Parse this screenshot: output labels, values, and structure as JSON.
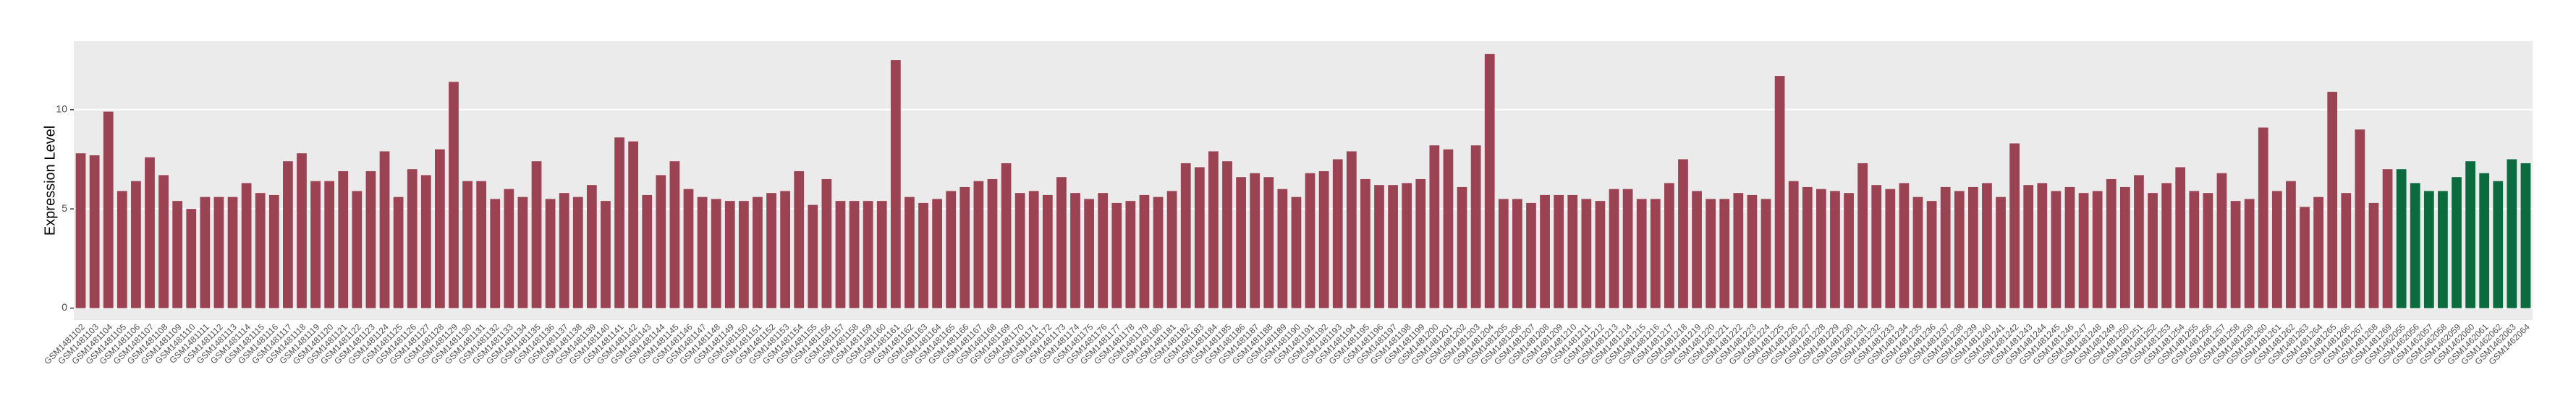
{
  "chart_data": {
    "type": "bar",
    "y_label": "Expression Level",
    "categories": [
      "GSM1481102",
      "GSM1481103",
      "GSM1481104",
      "GSM1481105",
      "GSM1481106",
      "GSM1481107",
      "GSM1481108",
      "GSM1481109",
      "GSM1481110",
      "GSM1481111",
      "GSM1481112",
      "GSM1481113",
      "GSM1481114",
      "GSM1481115",
      "GSM1481116",
      "GSM1481117",
      "GSM1481118",
      "GSM1481119",
      "GSM1481120",
      "GSM1481121",
      "GSM1481122",
      "GSM1481123",
      "GSM1481124",
      "GSM1481125",
      "GSM1481126",
      "GSM1481127",
      "GSM1481128",
      "GSM1481129",
      "GSM1481130",
      "GSM1481131",
      "GSM1481132",
      "GSM1481133",
      "GSM1481134",
      "GSM1481135",
      "GSM1481136",
      "GSM1481137",
      "GSM1481138",
      "GSM1481139",
      "GSM1481140",
      "GSM1481141",
      "GSM1481142",
      "GSM1481143",
      "GSM1481144",
      "GSM1481145",
      "GSM1481146",
      "GSM1481147",
      "GSM1481148",
      "GSM1481149",
      "GSM1481150",
      "GSM1481151",
      "GSM1481152",
      "GSM1481153",
      "GSM1481154",
      "GSM1481155",
      "GSM1481156",
      "GSM1481157",
      "GSM1481158",
      "GSM1481159",
      "GSM1481160",
      "GSM1481161",
      "GSM1481162",
      "GSM1481163",
      "GSM1481164",
      "GSM1481165",
      "GSM1481166",
      "GSM1481167",
      "GSM1481168",
      "GSM1481169",
      "GSM1481170",
      "GSM1481171",
      "GSM1481172",
      "GSM1481173",
      "GSM1481174",
      "GSM1481175",
      "GSM1481176",
      "GSM1481177",
      "GSM1481178",
      "GSM1481179",
      "GSM1481180",
      "GSM1481181",
      "GSM1481182",
      "GSM1481183",
      "GSM1481184",
      "GSM1481185",
      "GSM1481186",
      "GSM1481187",
      "GSM1481188",
      "GSM1481189",
      "GSM1481190",
      "GSM1481191",
      "GSM1481192",
      "GSM1481193",
      "GSM1481194",
      "GSM1481195",
      "GSM1481196",
      "GSM1481197",
      "GSM1481198",
      "GSM1481199",
      "GSM1481200",
      "GSM1481201",
      "GSM1481202",
      "GSM1481203",
      "GSM1481204",
      "GSM1481205",
      "GSM1481206",
      "GSM1481207",
      "GSM1481208",
      "GSM1481209",
      "GSM1481210",
      "GSM1481211",
      "GSM1481212",
      "GSM1481213",
      "GSM1481214",
      "GSM1481215",
      "GSM1481216",
      "GSM1481217",
      "GSM1481218",
      "GSM1481219",
      "GSM1481220",
      "GSM1481221",
      "GSM1481222",
      "GSM1481223",
      "GSM1481224",
      "GSM1481225",
      "GSM1481226",
      "GSM1481227",
      "GSM1481228",
      "GSM1481229",
      "GSM1481230",
      "GSM1481231",
      "GSM1481232",
      "GSM1481233",
      "GSM1481234",
      "GSM1481235",
      "GSM1481236",
      "GSM1481237",
      "GSM1481238",
      "GSM1481239",
      "GSM1481240",
      "GSM1481241",
      "GSM1481242",
      "GSM1481243",
      "GSM1481244",
      "GSM1481245",
      "GSM1481246",
      "GSM1481247",
      "GSM1481248",
      "GSM1481249",
      "GSM1481250",
      "GSM1481251",
      "GSM1481252",
      "GSM1481253",
      "GSM1481254",
      "GSM1481255",
      "GSM1481256",
      "GSM1481257",
      "GSM1481258",
      "GSM1481259",
      "GSM1481260",
      "GSM1481261",
      "GSM1481262",
      "GSM1481263",
      "GSM1481264",
      "GSM1481265",
      "GSM1481266",
      "GSM1481267",
      "GSM1481268",
      "GSM1481269",
      "GSM1462055",
      "GSM1462056",
      "GSM1462057",
      "GSM1462058",
      "GSM1462059",
      "GSM1462060",
      "GSM1462061",
      "GSM1462062",
      "GSM1462063",
      "GSM1462064"
    ],
    "series": [
      {
        "color": "#9b4253",
        "values": [
          7.8,
          7.7,
          9.9,
          5.9,
          6.4,
          7.6,
          6.7,
          5.4,
          5.0,
          5.6,
          5.6,
          5.6,
          6.3,
          5.8,
          5.7,
          7.4,
          7.8,
          6.4,
          6.4,
          6.9,
          5.9,
          6.9,
          7.9,
          5.6,
          7.0,
          6.7,
          8.0,
          11.4,
          6.4,
          6.4,
          5.5,
          6.0,
          5.6,
          7.4,
          5.5,
          5.8,
          5.6,
          6.2,
          5.4,
          8.6,
          8.4,
          5.7,
          6.7,
          7.4,
          6.0,
          5.6,
          5.5,
          5.4,
          5.4,
          5.6,
          5.8,
          5.9,
          6.9,
          5.2,
          6.5,
          5.4,
          5.4,
          5.4,
          5.4,
          12.5,
          5.6,
          5.3,
          5.5,
          5.9,
          6.1,
          6.4,
          6.5,
          7.3,
          5.8,
          5.9,
          5.7,
          6.6,
          5.8,
          5.5,
          5.8,
          5.3,
          5.4,
          5.7,
          5.6,
          5.9,
          7.3,
          7.1,
          7.9,
          7.4,
          6.6,
          6.8,
          6.6,
          6.0,
          5.6,
          6.8,
          6.9,
          7.5,
          7.9,
          6.5,
          6.2,
          6.2,
          6.3,
          6.5,
          8.2,
          8.0,
          6.1,
          8.2,
          12.8,
          5.5,
          5.5,
          5.3,
          5.7,
          5.7,
          5.7,
          5.5,
          5.4,
          6.0,
          6.0,
          5.5,
          5.5,
          6.3,
          7.5,
          5.9,
          5.5,
          5.5,
          5.8,
          5.7,
          5.5,
          11.7,
          6.4,
          6.1,
          6.0,
          5.9,
          5.8,
          7.3,
          6.2,
          6.0,
          6.3,
          5.6,
          5.4,
          6.1,
          5.9,
          6.1,
          6.3,
          5.6,
          8.3,
          6.2,
          6.3,
          5.9,
          6.1,
          5.8,
          5.9,
          6.5,
          6.1,
          6.7,
          5.8,
          6.3,
          7.1,
          5.9,
          5.8,
          6.8,
          5.4,
          5.5,
          9.1,
          5.9,
          6.4,
          5.1,
          5.6,
          10.9,
          5.8,
          9.0,
          5.3,
          7.0,
          null,
          null,
          null,
          null,
          null,
          null,
          null,
          null,
          null,
          null
        ]
      },
      {
        "color": "#0b6b3f",
        "values": [
          null,
          null,
          null,
          null,
          null,
          null,
          null,
          null,
          null,
          null,
          null,
          null,
          null,
          null,
          null,
          null,
          null,
          null,
          null,
          null,
          null,
          null,
          null,
          null,
          null,
          null,
          null,
          null,
          null,
          null,
          null,
          null,
          null,
          null,
          null,
          null,
          null,
          null,
          null,
          null,
          null,
          null,
          null,
          null,
          null,
          null,
          null,
          null,
          null,
          null,
          null,
          null,
          null,
          null,
          null,
          null,
          null,
          null,
          null,
          null,
          null,
          null,
          null,
          null,
          null,
          null,
          null,
          null,
          null,
          null,
          null,
          null,
          null,
          null,
          null,
          null,
          null,
          null,
          null,
          null,
          null,
          null,
          null,
          null,
          null,
          null,
          null,
          null,
          null,
          null,
          null,
          null,
          null,
          null,
          null,
          null,
          null,
          null,
          null,
          null,
          null,
          null,
          null,
          null,
          null,
          null,
          null,
          null,
          null,
          null,
          null,
          null,
          null,
          null,
          null,
          null,
          null,
          null,
          null,
          null,
          null,
          null,
          null,
          null,
          null,
          null,
          null,
          null,
          null,
          null,
          null,
          null,
          null,
          null,
          null,
          null,
          null,
          null,
          null,
          null,
          null,
          null,
          null,
          null,
          null,
          null,
          null,
          null,
          null,
          null,
          null,
          null,
          null,
          null,
          null,
          null,
          null,
          null,
          null,
          null,
          null,
          null,
          null,
          null,
          null,
          null,
          null,
          null,
          7.0,
          6.3,
          5.9,
          5.9,
          6.6,
          7.4,
          6.8,
          6.4,
          7.5,
          7.3
        ]
      }
    ],
    "ylim": [
      -0.6,
      13.45
    ],
    "yticks": [
      0,
      5,
      10
    ],
    "grid": true
  }
}
